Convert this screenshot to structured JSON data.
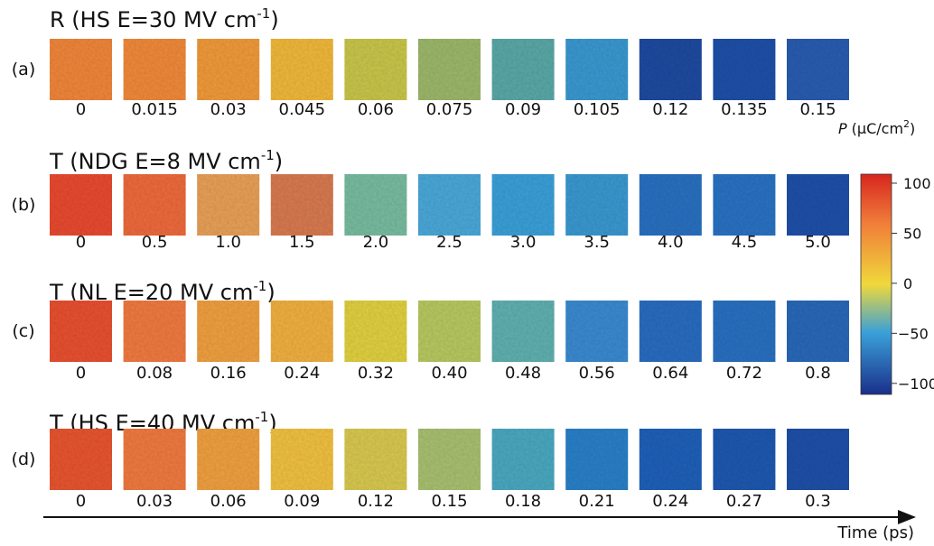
{
  "rows": [
    {
      "label": "(a)",
      "title": {
        "main": "R (HS E=30 MV cm",
        "sup": "-1",
        "end": ")"
      },
      "times": [
        "0",
        "0.015",
        "0.03",
        "0.045",
        "0.06",
        "0.075",
        "0.09",
        "0.105",
        "0.12",
        "0.135",
        "0.15"
      ],
      "colors": [
        "#f0863a",
        "#f08a3a",
        "#f09a3a",
        "#f0b83a",
        "#c8c64a",
        "#9cb86a",
        "#5aa8a8",
        "#3a98d0",
        "#1e4aa0",
        "#1e50a8",
        "#2a5cb0"
      ]
    },
    {
      "label": "(b)",
      "title": {
        "main": "T (NDG E=8 MV cm",
        "sup": "-1",
        "end": ")"
      },
      "times": [
        "0",
        "0.5",
        "1.0",
        "1.5",
        "2.0",
        "2.5",
        "3.0",
        "3.5",
        "4.0",
        "4.5",
        "5.0"
      ],
      "colors": [
        "#e84a30",
        "#ee6a3c",
        "#e8a058",
        "#d87a50",
        "#78bca0",
        "#4aa8d8",
        "#3aa0d8",
        "#3a98d0",
        "#2a70c0",
        "#2a72c2",
        "#2050a8"
      ]
    },
    {
      "label": "(c)",
      "title": {
        "main": "T (NL E=20 MV cm",
        "sup": "-1",
        "end": ")"
      },
      "times": [
        "0",
        "0.08",
        "0.16",
        "0.24",
        "0.32",
        "0.40",
        "0.48",
        "0.56",
        "0.64",
        "0.72",
        "0.8"
      ],
      "colors": [
        "#e85030",
        "#f07a40",
        "#f0a040",
        "#f0b040",
        "#e0d040",
        "#b8c860",
        "#60b0b0",
        "#3a8ad0",
        "#2a6cc0",
        "#2a70c0",
        "#2a68b8"
      ]
    },
    {
      "label": "(d)",
      "title": {
        "main": "T (HS E=40 MV cm",
        "sup": "-1",
        "end": ")"
      },
      "times": [
        "0",
        "0.03",
        "0.06",
        "0.09",
        "0.12",
        "0.15",
        "0.18",
        "0.21",
        "0.24",
        "0.27",
        "0.3"
      ],
      "colors": [
        "#e85530",
        "#f07a40",
        "#f0a040",
        "#f0c040",
        "#d8c850",
        "#a8c070",
        "#4aa8c0",
        "#2a80c8",
        "#2060b8",
        "#2058b0",
        "#2050a8"
      ]
    }
  ],
  "colorbar": {
    "label": {
      "symbol": "P",
      "unit": "(μC/cm",
      "sup": "2",
      "end": ")"
    },
    "lim": [
      -111,
      109
    ],
    "ticks": [
      100,
      50,
      0,
      {
        "value": -50,
        "label": "−50"
      },
      {
        "value": -100,
        "label": "−100"
      }
    ]
  },
  "axis_label": "Time (ps)"
}
